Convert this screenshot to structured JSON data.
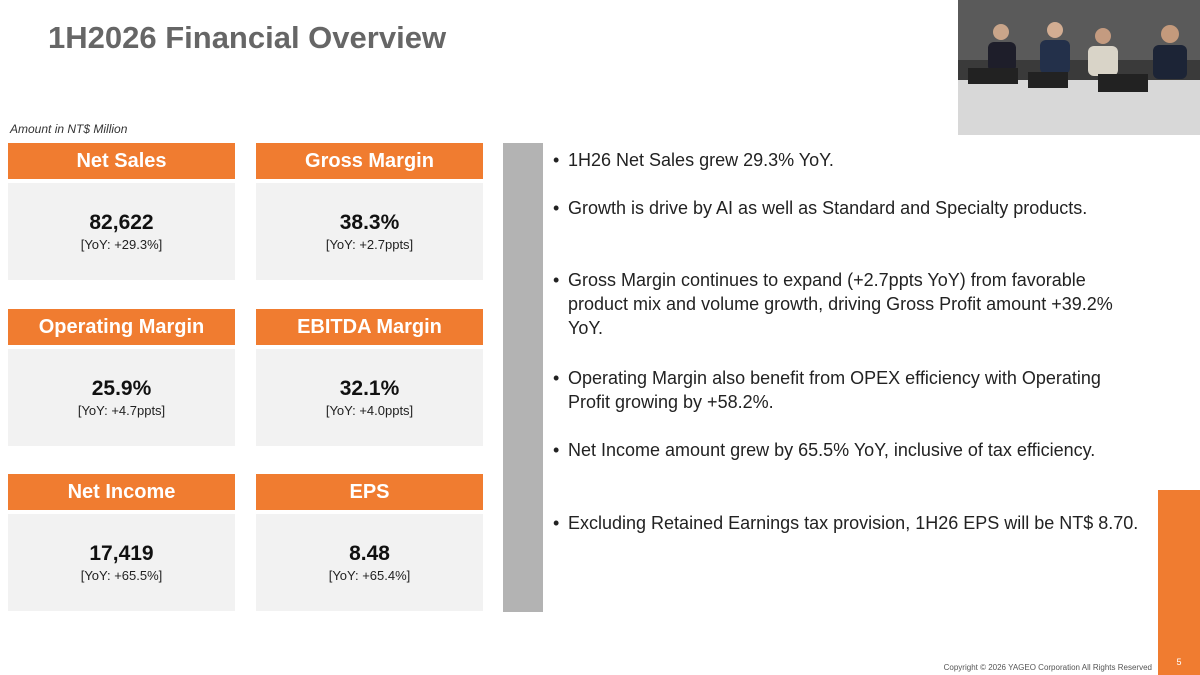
{
  "header": {
    "title": "1H2026 Financial Overview",
    "note": "Amount in NT$ Million"
  },
  "cards": [
    {
      "title": "Net Sales",
      "value": "82,622",
      "yoy": "[YoY: +29.3%]"
    },
    {
      "title": "Gross Margin",
      "value": "38.3%",
      "yoy": "[YoY: +2.7ppts]"
    },
    {
      "title": "Operating Margin",
      "value": "25.9%",
      "yoy": "[YoY: +4.7ppts]"
    },
    {
      "title": "EBITDA Margin",
      "value": "32.1%",
      "yoy": "[YoY: +4.0ppts]"
    },
    {
      "title": "Net Income",
      "value": "17,419",
      "yoy": "[YoY: +65.5%]"
    },
    {
      "title": "EPS",
      "value": "8.48",
      "yoy": "[YoY: +65.4%]"
    }
  ],
  "bullets": [
    "1H26 Net Sales grew 29.3% YoY.",
    "Growth is drive by AI as well as Standard and Specialty products.",
    "Gross Margin continues to expand (+2.7ppts YoY) from favorable product mix and volume growth, driving Gross Profit amount +39.2% YoY.",
    "Operating Margin also benefit from OPEX efficiency with Operating Profit growing by +58.2%.",
    "Net Income amount grew by 65.5% YoY, inclusive of tax efficiency.",
    "Excluding Retained Earnings tax provision, 1H26 EPS will be NT$ 8.70."
  ],
  "footer": {
    "copyright": "Copyright © 2026 YAGEO Corporation  All Rights Reserved",
    "page": "5"
  }
}
